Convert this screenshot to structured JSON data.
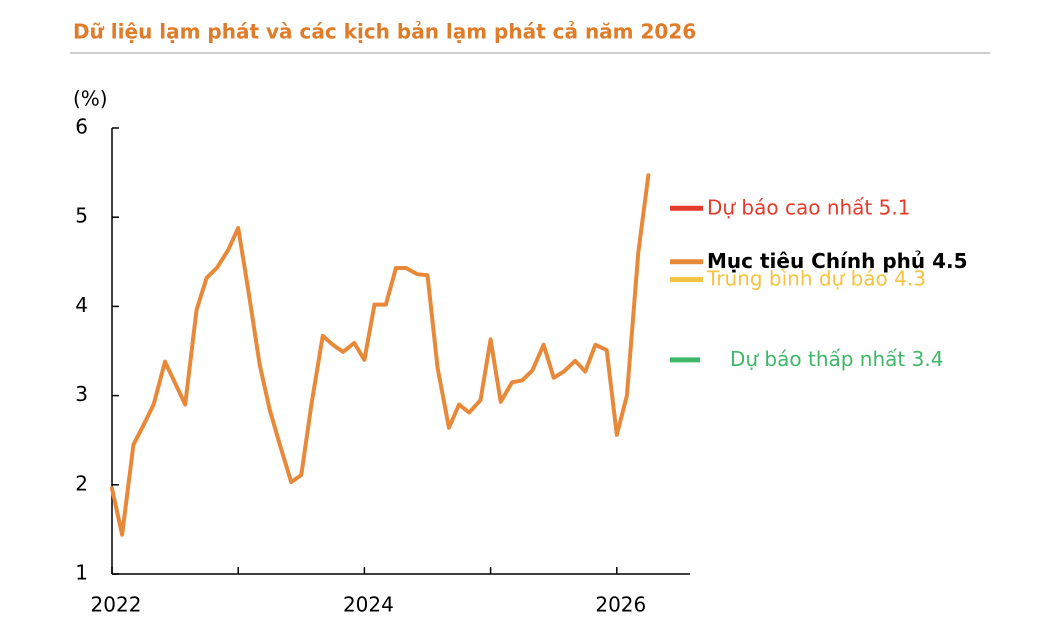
{
  "chart_data": {
    "type": "line",
    "title": "Dữ liệu lạm phát và các kịch bản lạm phát cả năm 2026",
    "y_label": "(%)",
    "xlim": [
      2022,
      2026.58
    ],
    "xticks": [
      2022,
      {
        "value": 2023,
        "label": null
      },
      2024,
      {
        "value": 2025,
        "label": null
      },
      2026
    ],
    "ylim": [
      1,
      6
    ],
    "yticks": [
      1,
      2,
      3,
      4,
      5,
      6
    ],
    "series": [
      {
        "color": "#e8893a",
        "x": [
          2022.0,
          2022.08,
          2022.17,
          2022.25,
          2022.33,
          2022.42,
          2022.5,
          2022.58,
          2022.67,
          2022.75,
          2022.83,
          2022.92,
          2023.0,
          2023.08,
          2023.17,
          2023.25,
          2023.33,
          2023.42,
          2023.5,
          2023.58,
          2023.67,
          2023.75,
          2023.83,
          2023.92,
          2024.0,
          2024.08,
          2024.17,
          2024.25,
          2024.33,
          2024.42,
          2024.5,
          2024.58,
          2024.67,
          2024.75,
          2024.83,
          2024.92,
          2025.0,
          2025.08,
          2025.17,
          2025.25,
          2025.33,
          2025.42,
          2025.5,
          2025.58,
          2025.67,
          2025.75,
          2025.83,
          2025.92,
          2026.0,
          2026.08,
          2026.17,
          2026.25
        ],
        "values": [
          1.96,
          1.44,
          2.45,
          2.67,
          2.9,
          3.38,
          3.14,
          2.9,
          3.96,
          4.32,
          4.43,
          4.63,
          4.88,
          4.18,
          3.35,
          2.84,
          2.45,
          2.03,
          2.11,
          2.9,
          3.67,
          3.57,
          3.49,
          3.59,
          3.4,
          4.02,
          4.02,
          4.43,
          4.43,
          4.36,
          4.35,
          3.31,
          2.64,
          2.9,
          2.81,
          2.95,
          3.63,
          2.93,
          3.15,
          3.17,
          3.28,
          3.57,
          3.2,
          3.27,
          3.39,
          3.27,
          3.57,
          3.51,
          2.56,
          3.0,
          4.6,
          5.47
        ]
      }
    ],
    "scenarios": [
      {
        "name": "Dự báo cao nhất",
        "value": 5.1,
        "color": "#e53b2c",
        "text_color": "#e53b2c",
        "bold": false
      },
      {
        "name": "Mục tiêu Chính phủ",
        "value": 4.5,
        "color": "#e8893a",
        "text_color": "#000000",
        "bold": true
      },
      {
        "name": "Trung bình dự báo",
        "value": 4.3,
        "color": "#f5c342",
        "text_color": "#f5c342",
        "bold": false
      },
      {
        "name": "Dự báo thấp nhất",
        "value": 3.4,
        "color": "#3fb768",
        "text_color": "#3fb768",
        "bold": false
      }
    ]
  }
}
